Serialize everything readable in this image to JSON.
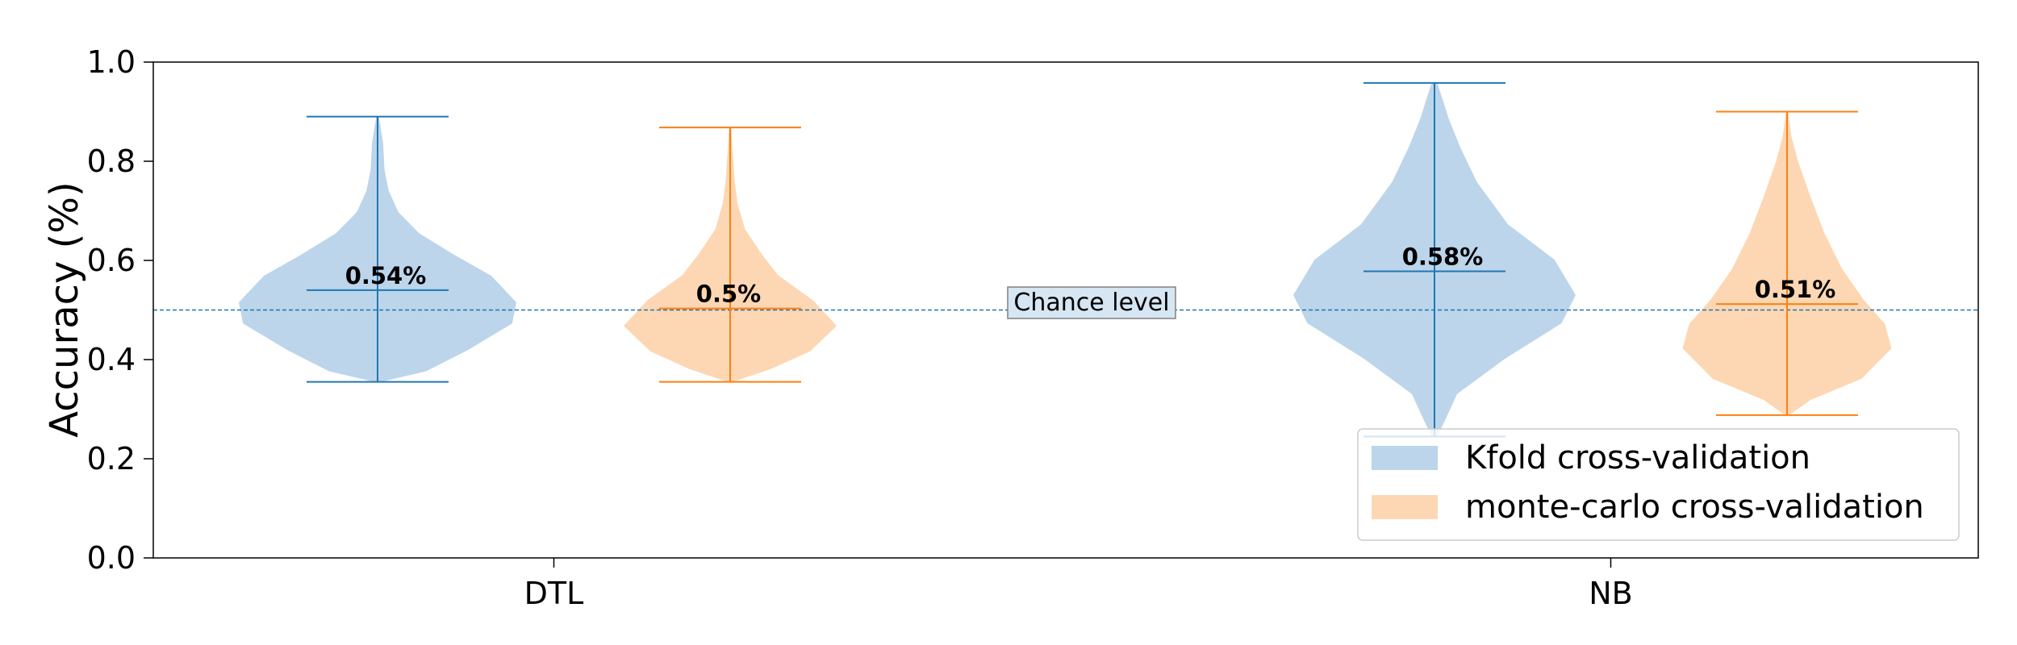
{
  "chart_data": {
    "type": "violin",
    "title": "",
    "xlabel": "",
    "ylabel": "Accuracy (%)",
    "ylim": [
      0.0,
      1.0
    ],
    "yticks": [
      "0.0",
      "0.2",
      "0.4",
      "0.6",
      "0.8",
      "1.0"
    ],
    "categories": [
      "DTL",
      "NB"
    ],
    "chance_level": {
      "value": 0.5,
      "label": "Chance level",
      "color": "#1f77b4"
    },
    "legend_position": "lower-right",
    "series": [
      {
        "name": "Kfold cross-validation",
        "fill": "#bcd5ea",
        "line": "#1f77b4",
        "stats": [
          {
            "category": "DTL",
            "min": 0.355,
            "max": 0.89,
            "mean": 0.54,
            "mean_label": "0.54%"
          },
          {
            "category": "NB",
            "min": 0.245,
            "max": 0.958,
            "mean": 0.578,
            "mean_label": "0.58%"
          }
        ]
      },
      {
        "name": "monte-carlo cross-validation",
        "fill": "#fdd7b3",
        "line": "#ff7f0e",
        "stats": [
          {
            "category": "DTL",
            "min": 0.355,
            "max": 0.868,
            "mean": 0.503,
            "mean_label": "0.5%"
          },
          {
            "category": "NB",
            "min": 0.288,
            "max": 0.9,
            "mean": 0.512,
            "mean_label": "0.51%"
          }
        ]
      }
    ]
  }
}
